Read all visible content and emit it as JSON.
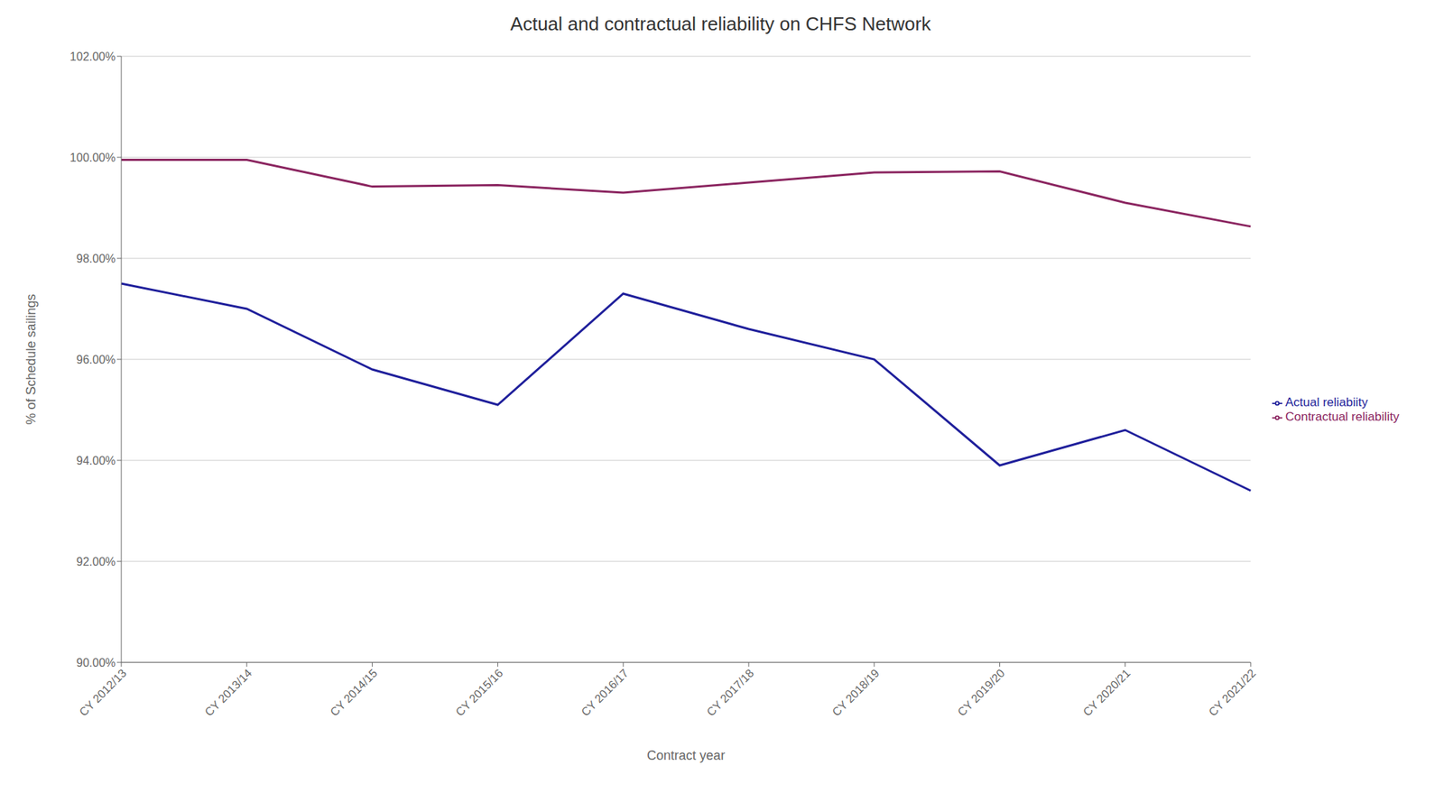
{
  "chart_data": {
    "type": "line",
    "title": "Actual and contractual reliability on CHFS Network",
    "xlabel": "Contract year",
    "ylabel": "% of Schedule sailings",
    "categories": [
      "CY 2012/13",
      "CY 2013/14",
      "CY 2014/15",
      "CY 2015/16",
      "CY 2016/17",
      "CY 2017/18",
      "CY 2018/19",
      "CY 2019/20",
      "CY 2020/21",
      "CY 2021/22"
    ],
    "series": [
      {
        "name": "Actual reliabiity",
        "color": "#1F1F9B",
        "values": [
          0.975,
          0.97,
          0.958,
          0.951,
          0.973,
          0.966,
          0.96,
          0.939,
          0.946,
          0.934
        ]
      },
      {
        "name": "Contractual reliability",
        "color": "#8B2560",
        "values": [
          0.9995,
          0.9995,
          0.9942,
          0.9945,
          0.993,
          0.995,
          0.997,
          0.9972,
          0.991,
          0.9863
        ]
      }
    ],
    "ylim": [
      0.9,
      1.02
    ],
    "yticks": [
      {
        "value": 0.9,
        "label": "90.00%"
      },
      {
        "value": 0.92,
        "label": "92.00%"
      },
      {
        "value": 0.94,
        "label": "94.00%"
      },
      {
        "value": 0.96,
        "label": "96.00%"
      },
      {
        "value": 0.98,
        "label": "98.00%"
      },
      {
        "value": 1.0,
        "label": "100.00%"
      },
      {
        "value": 1.02,
        "label": "102.00%"
      }
    ],
    "grid": true,
    "legend": "right"
  }
}
